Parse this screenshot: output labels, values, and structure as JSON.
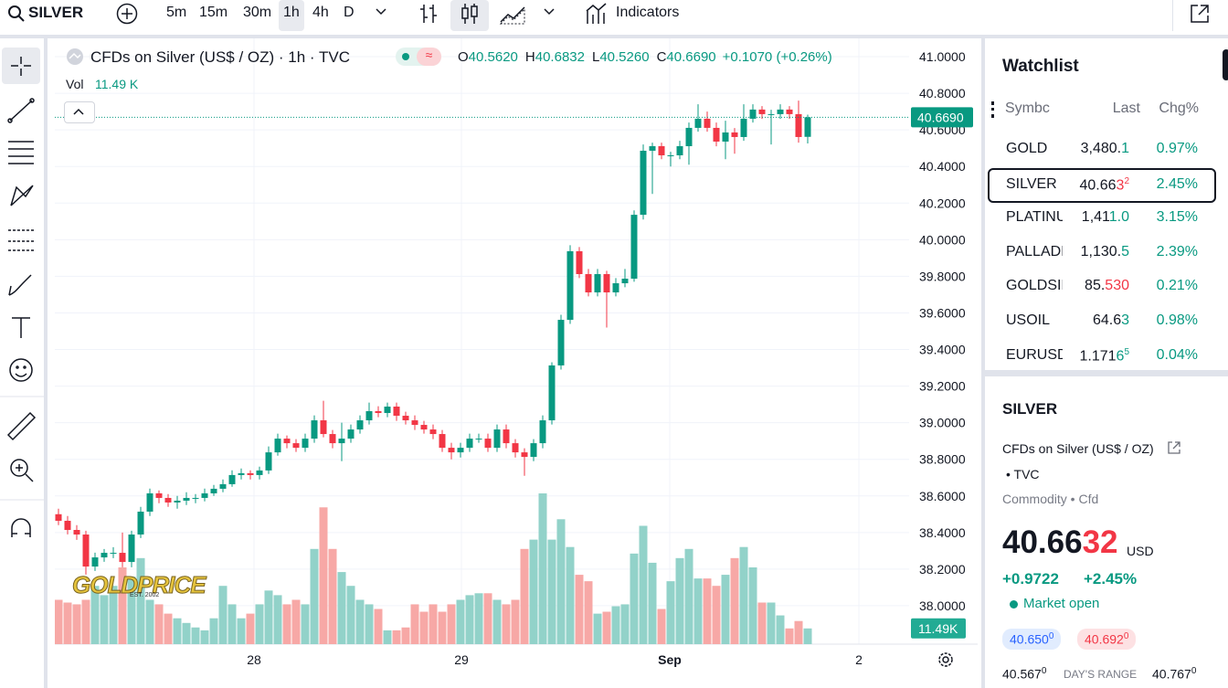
{
  "toolbar": {
    "symbol": "SILVER",
    "intervals": [
      "5m",
      "15m",
      "30m",
      "1h",
      "4h",
      "D"
    ],
    "active_interval": 3,
    "indicators": "Indicators"
  },
  "legend": {
    "title": "CFDs on Silver (US$ / OZ) · 1h · TVC",
    "ohlc": [
      {
        "key": "O",
        "value": "40.5620"
      },
      {
        "key": "H",
        "value": "40.6832"
      },
      {
        "key": "L",
        "value": "40.5260"
      },
      {
        "key": "C",
        "value": "40.6690"
      }
    ],
    "change": "+0.1070 (+0.26%)",
    "vol_label": "Vol",
    "vol_value": "11.49 K"
  },
  "watermark": {
    "name": "GOLDPRICE",
    "est": "EST. 2002"
  },
  "chart_data": {
    "type": "candlestick",
    "xlim": [
      -0.4,
      93.1
    ],
    "xticks": [
      {
        "value": 21.4,
        "label": "28"
      },
      {
        "value": 44.1,
        "label": "29"
      },
      {
        "value": 66.9,
        "label": "Sep"
      },
      {
        "value": 87.6,
        "label": "2"
      }
    ],
    "ylim": [
      37.79,
      41.1
    ],
    "yticks": [
      {
        "value": 41,
        "label": "41.0000"
      },
      {
        "value": 40.8,
        "label": "40.8000"
      },
      {
        "value": 40.6,
        "label": "40.6000"
      },
      {
        "value": 40.4,
        "label": "40.4000"
      },
      {
        "value": 40.2,
        "label": "40.2000"
      },
      {
        "value": 40,
        "label": "40.0000"
      },
      {
        "value": 39.8,
        "label": "39.8000"
      },
      {
        "value": 39.6,
        "label": "39.6000"
      },
      {
        "value": 39.4,
        "label": "39.4000"
      },
      {
        "value": 39.2,
        "label": "39.2000"
      },
      {
        "value": 39,
        "label": "39.0000"
      },
      {
        "value": 38.8,
        "label": "38.8000"
      },
      {
        "value": 38.6,
        "label": "38.6000"
      },
      {
        "value": 38.4,
        "label": "38.4000"
      },
      {
        "value": 38.2,
        "label": "38.2000"
      },
      {
        "value": 38,
        "label": "38.0000"
      }
    ],
    "grid": true,
    "up_color": "#089981",
    "down_color": "#f23645",
    "up_volume_color": "#92d2c9",
    "down_volume_color": "#f7a8a6",
    "open": [
      38.5,
      38.464,
      38.414,
      38.389,
      38.214,
      38.264,
      38.289,
      38.289,
      38.239,
      38.389,
      38.514,
      38.614,
      38.589,
      38.564,
      38.574,
      38.589,
      38.589,
      38.614,
      38.639,
      38.664,
      38.714,
      38.724,
      38.714,
      38.739,
      38.838,
      38.913,
      38.888,
      38.863,
      38.913,
      39.013,
      38.938,
      38.888,
      38.913,
      38.963,
      39.013,
      39.063,
      39.053,
      39.088,
      39.038,
      39.013,
      38.988,
      38.963,
      38.938,
      38.863,
      38.838,
      38.863,
      38.913,
      38.913,
      38.863,
      38.963,
      38.888,
      38.838,
      38.813,
      38.888,
      39.013,
      39.313,
      39.562,
      39.937,
      39.812,
      39.712,
      39.812,
      39.712,
      39.762,
      39.787,
      40.136,
      40.486,
      40.511,
      40.461,
      40.461,
      40.511,
      40.611,
      40.661,
      40.611,
      40.536,
      40.586,
      40.561,
      40.661,
      40.711,
      40.686,
      40.686,
      40.711,
      40.686,
      40.562
    ],
    "high": [
      38.53,
      38.49,
      38.44,
      38.41,
      38.29,
      38.31,
      38.32,
      38.4,
      38.41,
      38.54,
      38.64,
      38.63,
      38.61,
      38.6,
      38.62,
      38.61,
      38.64,
      38.66,
      38.69,
      38.74,
      38.75,
      38.74,
      38.76,
      38.87,
      38.94,
      38.93,
      38.91,
      38.94,
      39.04,
      39.12,
      38.96,
      39.0,
      38.99,
      39.04,
      39.11,
      39.09,
      39.11,
      39.11,
      39.06,
      39.04,
      39.01,
      38.99,
      38.96,
      38.89,
      38.89,
      38.94,
      38.94,
      38.94,
      38.99,
      38.99,
      38.91,
      38.86,
      38.91,
      39.04,
      39.33,
      39.59,
      39.97,
      39.96,
      39.84,
      39.84,
      39.83,
      39.79,
      39.84,
      40.16,
      40.52,
      40.53,
      40.53,
      40.48,
      40.54,
      40.64,
      40.74,
      40.7,
      40.64,
      40.65,
      40.61,
      40.74,
      40.74,
      40.73,
      40.71,
      40.74,
      40.73,
      40.76,
      40.6832
    ],
    "low": [
      38.44,
      38.39,
      38.36,
      38.17,
      38.19,
      38.24,
      38.26,
      38.21,
      38.21,
      38.37,
      38.49,
      38.56,
      38.54,
      38.53,
      38.55,
      38.56,
      38.57,
      38.6,
      38.62,
      38.65,
      38.69,
      38.69,
      38.69,
      38.72,
      38.82,
      38.86,
      38.84,
      38.84,
      38.89,
      38.92,
      38.86,
      38.79,
      38.89,
      38.94,
      38.99,
      39.03,
      39.03,
      39.01,
      38.99,
      38.96,
      38.94,
      38.91,
      38.84,
      38.8,
      38.81,
      38.84,
      38.89,
      38.84,
      38.84,
      38.86,
      38.81,
      38.71,
      38.79,
      38.86,
      38.99,
      39.29,
      39.54,
      39.79,
      39.69,
      39.69,
      39.52,
      39.69,
      39.74,
      39.77,
      40.11,
      40.25,
      40.44,
      40.4,
      40.44,
      40.41,
      40.59,
      40.59,
      40.51,
      40.44,
      40.47,
      40.54,
      40.64,
      40.66,
      40.52,
      40.66,
      40.66,
      40.53,
      40.526
    ],
    "close": [
      38.464,
      38.414,
      38.389,
      38.214,
      38.264,
      38.289,
      38.289,
      38.239,
      38.389,
      38.514,
      38.614,
      38.589,
      38.564,
      38.574,
      38.589,
      38.589,
      38.614,
      38.639,
      38.664,
      38.714,
      38.724,
      38.714,
      38.739,
      38.838,
      38.913,
      38.888,
      38.863,
      38.913,
      39.013,
      38.938,
      38.888,
      38.913,
      38.963,
      39.013,
      39.063,
      39.053,
      39.088,
      39.038,
      39.013,
      38.988,
      38.963,
      38.938,
      38.863,
      38.838,
      38.863,
      38.913,
      38.913,
      38.863,
      38.963,
      38.888,
      38.838,
      38.813,
      38.888,
      39.013,
      39.313,
      39.562,
      39.937,
      39.812,
      39.712,
      39.812,
      39.712,
      39.762,
      39.787,
      40.136,
      40.486,
      40.511,
      40.461,
      40.461,
      40.511,
      40.611,
      40.661,
      40.611,
      40.536,
      40.586,
      40.561,
      40.661,
      40.711,
      40.686,
      40.686,
      40.711,
      40.686,
      40.561,
      40.669
    ],
    "volume": [
      32.4,
      30.4,
      29.1,
      32.4,
      42.6,
      35.8,
      42.6,
      56.1,
      49.3,
      62.9,
      32.4,
      29.1,
      22.3,
      18.9,
      15.5,
      12.2,
      10.1,
      18.9,
      42.6,
      29.1,
      18.9,
      22.3,
      29.1,
      39.2,
      35.8,
      29.1,
      32.4,
      29.1,
      69.6,
      100.0,
      69.6,
      52.7,
      42.6,
      32.4,
      29.1,
      25.7,
      10.1,
      10.1,
      12.2,
      29.1,
      23.7,
      29.1,
      23.7,
      29.1,
      32.4,
      35.8,
      37.2,
      37.2,
      32.4,
      29.1,
      32.4,
      69.6,
      76.4,
      110.2,
      76.4,
      91.3,
      71.0,
      50.7,
      46.0,
      22.3,
      23.7,
      27.7,
      29.1,
      66.2,
      86.5,
      59.5,
      25.7,
      46.0,
      62.9,
      69.6,
      48.0,
      48.0,
      42.6,
      50.7,
      62.9,
      71.0,
      56.1,
      30.4,
      30.4,
      21.0,
      11.49,
      16.9,
      11.49
    ],
    "last_price": {
      "value": 40.669,
      "label": "40.6690"
    },
    "last_volume": {
      "value": 11.49,
      "label": "11.49K"
    }
  },
  "watchlist": {
    "title": "Watchlist",
    "columns": [
      "Symbc",
      "Last",
      "Chg%"
    ],
    "selected": 1,
    "rows": [
      {
        "symbol": "GOLD",
        "last": "3,480.",
        "tail": "1",
        "tail_color": "#089981",
        "chg": "0.97%"
      },
      {
        "symbol": "SILVER",
        "last": "40.66",
        "tail": "3",
        "sup": "2",
        "tail_color": "#f23645",
        "chg": "2.45%"
      },
      {
        "symbol": "PLATINU",
        "last": "1,41",
        "tail": "1.0",
        "tail_color": "#089981",
        "chg": "3.15%"
      },
      {
        "symbol": "PALLADI",
        "last": "1,130.",
        "tail": "5",
        "tail_color": "#089981",
        "chg": "2.39%"
      },
      {
        "symbol": "GOLDSIL",
        "last": "85.",
        "tail": "530",
        "tail_color": "#f23645",
        "chg": "0.21%"
      },
      {
        "symbol": "USOIL",
        "last": "64.6",
        "tail": "3",
        "tail_color": "#089981",
        "chg": "0.98%"
      },
      {
        "symbol": "EURUSD",
        "last": "1.171",
        "tail": "6",
        "sup": "5",
        "tail_color": "#089981",
        "chg": "0.04%"
      }
    ]
  },
  "details": {
    "symbol": "SILVER",
    "description": "CFDs on Silver (US$ / OZ)",
    "exchange": "• TVC",
    "category": "Commodity • Cfd",
    "price": "40.66",
    "price_tail": "32",
    "currency": "USD",
    "change": "+0.9722",
    "change_pct": "+2.45%",
    "status": "Market open",
    "bid": "40.650",
    "bid_sup": "0",
    "ask": "40.692",
    "ask_sup": "0",
    "range_low": "40.567",
    "range_low_sup": "0",
    "range_label": "DAY'S RANGE",
    "range_high": "40.767",
    "range_high_sup": "0"
  }
}
